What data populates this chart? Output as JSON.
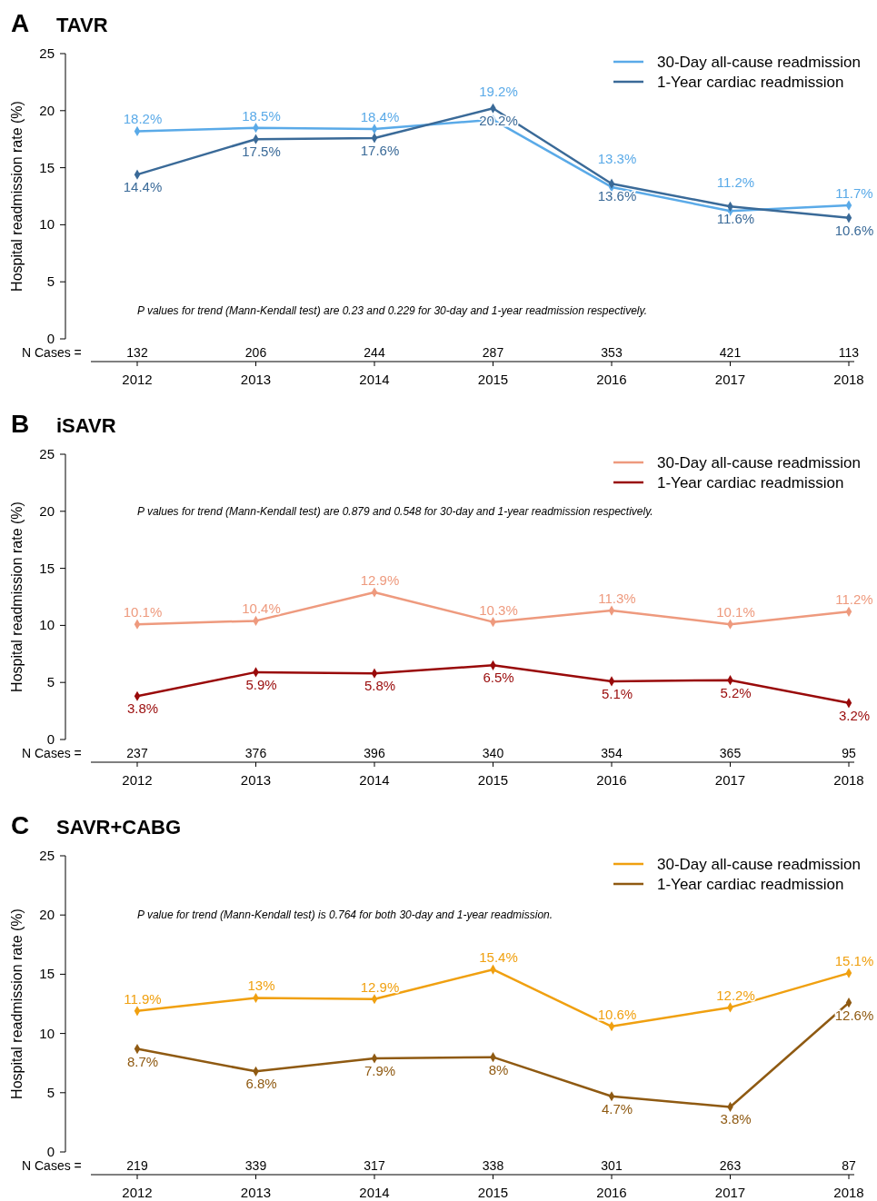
{
  "chart_data": [
    {
      "type": "line",
      "title": "TAVR",
      "ylabel": "Hospital readmission rate (%)",
      "categories": [
        "2012",
        "2013",
        "2014",
        "2015",
        "2016",
        "2017",
        "2018"
      ],
      "ylim": [
        0,
        25
      ],
      "yticks": [
        0,
        5,
        10,
        15,
        20,
        25
      ],
      "legend": "top right",
      "marker": "diamond",
      "series": [
        {
          "name": "30-Day all-cause readmission",
          "color": "#5aaae8",
          "values": [
            18.2,
            18.5,
            18.4,
            19.2,
            13.3,
            11.2,
            11.7
          ],
          "value_labels": [
            "18.2%",
            "18.5%",
            "18.4%",
            "19.2%",
            "13.3%",
            "11.2%",
            "11.7%"
          ]
        },
        {
          "name": "1-Year cardiac readmission",
          "color": "#3a6a98",
          "values": [
            14.4,
            17.5,
            17.6,
            20.2,
            13.6,
            11.6,
            10.6
          ],
          "value_labels": [
            "14.4%",
            "17.5%",
            "17.6%",
            "20.2%",
            "13.6%",
            "11.6%",
            "10.6%"
          ]
        }
      ],
      "annotations": [
        "A",
        "P values for trend (Mann-Kendall test) are 0.23 and 0.229 for 30-day and 1-year readmission respectively.",
        "N Cases =",
        "132",
        "206",
        "244",
        "287",
        "353",
        "421",
        "113"
      ]
    },
    {
      "type": "line",
      "title": "iSAVR",
      "ylabel": "Hospital readmission rate (%)",
      "categories": [
        "2012",
        "2013",
        "2014",
        "2015",
        "2016",
        "2017",
        "2018"
      ],
      "ylim": [
        0,
        25
      ],
      "yticks": [
        0,
        5,
        10,
        15,
        20,
        25
      ],
      "legend": "top right",
      "marker": "diamond",
      "series": [
        {
          "name": "30-Day all-cause readmission",
          "color": "#ee9a7e",
          "values": [
            10.1,
            10.4,
            12.9,
            10.3,
            11.3,
            10.1,
            11.2
          ],
          "value_labels": [
            "10.1%",
            "10.4%",
            "12.9%",
            "10.3%",
            "11.3%",
            "10.1%",
            "11.2%"
          ]
        },
        {
          "name": "1-Year cardiac readmission",
          "color": "#990a0a",
          "values": [
            3.8,
            5.9,
            5.8,
            6.5,
            5.1,
            5.2,
            3.2
          ],
          "value_labels": [
            "3.8%",
            "5.9%",
            "5.8%",
            "6.5%",
            "5.1%",
            "5.2%",
            "3.2%"
          ]
        }
      ],
      "annotations": [
        "B",
        "P values for trend (Mann-Kendall test) are 0.879 and 0.548 for 30-day and 1-year readmission respectively.",
        "N Cases =",
        "237",
        "376",
        "396",
        "340",
        "354",
        "365",
        "95"
      ]
    },
    {
      "type": "line",
      "title": "SAVR+CABG",
      "ylabel": "Hospital readmission rate (%)",
      "categories": [
        "2012",
        "2013",
        "2014",
        "2015",
        "2016",
        "2017",
        "2018"
      ],
      "ylim": [
        0,
        25
      ],
      "yticks": [
        0,
        5,
        10,
        15,
        20,
        25
      ],
      "legend": "top right",
      "marker": "diamond",
      "series": [
        {
          "name": "30-Day all-cause readmission",
          "color": "#f0a010",
          "values": [
            11.9,
            13,
            12.9,
            15.4,
            10.6,
            12.2,
            15.1
          ],
          "value_labels": [
            "11.9%",
            "13%",
            "12.9%",
            "15.4%",
            "10.6%",
            "12.2%",
            "15.1%"
          ]
        },
        {
          "name": "1-Year cardiac readmission",
          "color": "#8f5a12",
          "values": [
            8.7,
            6.8,
            7.9,
            8,
            4.7,
            3.8,
            12.6
          ],
          "value_labels": [
            "8.7%",
            "6.8%",
            "7.9%",
            "8%",
            "4.7%",
            "3.8%",
            "12.6%"
          ]
        }
      ],
      "annotations": [
        "C",
        "P value for trend (Mann-Kendall test) is 0.764 for both 30-day and 1-year readmission.",
        "N Cases =",
        "219",
        "339",
        "317",
        "338",
        "301",
        "263",
        "87"
      ]
    }
  ]
}
